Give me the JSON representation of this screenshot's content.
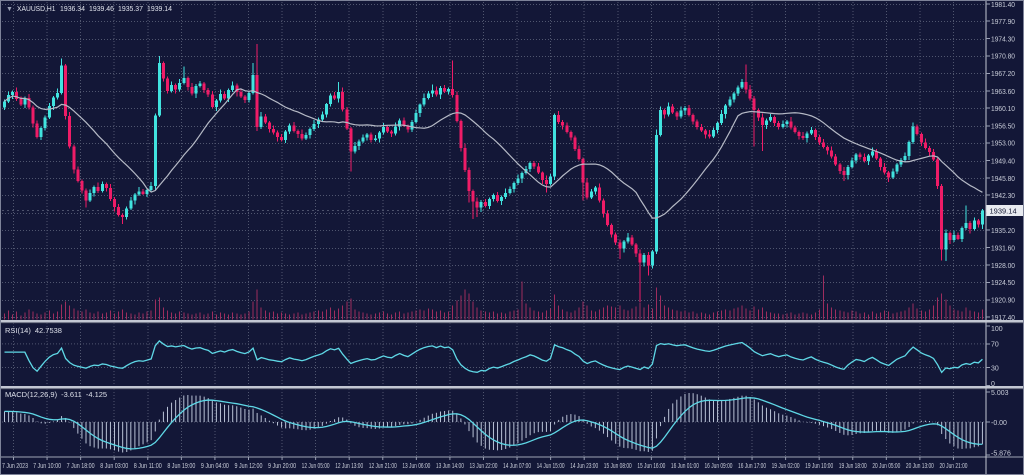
{
  "window": {
    "dropdown_icon": "▼",
    "symbol_period": "XAUUSD,H1",
    "open": "1936.34",
    "high": "1939.46",
    "low": "1935.37",
    "close": "1939.14"
  },
  "price_axis": {
    "labels": [
      "1981.40",
      "1977.90",
      "1974.30",
      "1970.80",
      "1967.20",
      "1963.60",
      "1960.10",
      "1956.50",
      "1953.00",
      "1949.40",
      "1945.80",
      "1942.30",
      "1938.70",
      "1935.20",
      "1931.60",
      "1928.00",
      "1924.50",
      "1920.90",
      "1917.40"
    ],
    "current_price": "1939.14"
  },
  "time_axis": {
    "labels": [
      "7 Jun 2023",
      "7 Jun 10:00",
      "7 Jun 18:00",
      "8 Jun 03:00",
      "8 Jun 11:00",
      "8 Jun 19:00",
      "9 Jun 04:00",
      "9 Jun 12:00",
      "9 Jun 20:00",
      "12 Jun 05:00",
      "12 Jun 13:00",
      "12 Jun 21:00",
      "13 Jun 06:00",
      "13 Jun 14:00",
      "13 Jun 22:00",
      "14 Jun 07:00",
      "14 Jun 15:00",
      "14 Jun 23:00",
      "15 Jun 08:00",
      "15 Jun 16:00",
      "16 Jun 01:00",
      "16 Jun 09:00",
      "16 Jun 17:00",
      "19 Jun 02:00",
      "19 Jun 10:00",
      "19 Jun 18:00",
      "20 Jun 05:00",
      "20 Jun 13:00",
      "20 Jun 21:00"
    ]
  },
  "indicators": {
    "rsi": {
      "label": "RSI(14)",
      "value": "42.7538",
      "period": 14,
      "scale_labels": [
        "100",
        "70",
        "30",
        "0"
      ],
      "level_lines": [
        70,
        30
      ]
    },
    "macd": {
      "label": "MACD(12,26,9)",
      "value": "-3.611",
      "signal_value": "-4.125",
      "fast": 12,
      "slow": 26,
      "signal": 9,
      "scale_labels": [
        "5.003",
        "-0.00",
        "-5.876"
      ],
      "initial_trend_offset": 1.8
    }
  },
  "ma": {
    "period": 21
  },
  "colors": {
    "bg": "#131737",
    "grid": "#50566f",
    "bull": "#41e3df",
    "bear": "#ef1c67",
    "ma_line": "#b6bac6",
    "volume": "#9e2d5e",
    "rsi_line": "#5fd8e6",
    "macd_hist": "#b9c2d6",
    "macd_signal": "#5fd8e6",
    "axis_text": "#c9cdd9",
    "separator": "#c3c7d3",
    "price_box_bg": "#e8eaf0",
    "price_box_text": "#10142f",
    "bid_line": "#7c8197",
    "border": "#7e8399"
  },
  "chart_data": {
    "type": "candlestick",
    "symbol": "XAUUSD",
    "timeframe": "H1",
    "first_open": 1960.2,
    "open_rule": "previous_close",
    "closes": [
      1961.5,
      1962.8,
      1963.4,
      1962.0,
      1960.8,
      1962.2,
      1960.2,
      1957.0,
      1954.2,
      1956.0,
      1958.2,
      1960.5,
      1962.3,
      1963.2,
      1968.8,
      1958.5,
      1952.3,
      1947.6,
      1945.2,
      1943.3,
      1941.2,
      1942.8,
      1944.0,
      1943.2,
      1944.6,
      1943.8,
      1941.5,
      1939.9,
      1938.3,
      1937.8,
      1939.6,
      1941.2,
      1942.5,
      1943.1,
      1942.6,
      1943.4,
      1944.2,
      1958.6,
      1969.3,
      1966.2,
      1963.6,
      1964.8,
      1963.9,
      1965.2,
      1966.3,
      1964.4,
      1963.1,
      1964.6,
      1965.1,
      1963.8,
      1962.9,
      1960.3,
      1961.7,
      1963.0,
      1962.1,
      1963.8,
      1964.7,
      1963.4,
      1962.5,
      1961.8,
      1963.2,
      1966.9,
      1956.2,
      1958.4,
      1957.2,
      1955.8,
      1955.1,
      1954.2,
      1953.6,
      1955.3,
      1956.6,
      1955.4,
      1954.8,
      1953.9,
      1954.6,
      1955.8,
      1956.9,
      1957.8,
      1958.8,
      1960.9,
      1962.7,
      1962.1,
      1963.4,
      1959.8,
      1955.9,
      1951.2,
      1952.4,
      1953.3,
      1954.1,
      1954.7,
      1953.6,
      1953.9,
      1955.1,
      1956.2,
      1955.3,
      1954.9,
      1956.4,
      1957.6,
      1956.5,
      1955.7,
      1957.3,
      1959.1,
      1960.8,
      1962.2,
      1963.1,
      1963.7,
      1962.9,
      1964.2,
      1963.5,
      1964.0,
      1962.8,
      1957.5,
      1952.0,
      1947.5,
      1943.2,
      1941.0,
      1939.8,
      1940.9,
      1940.1,
      1941.5,
      1942.3,
      1941.1,
      1941.9,
      1942.8,
      1943.6,
      1944.8,
      1945.7,
      1946.8,
      1947.7,
      1948.9,
      1948.2,
      1946.9,
      1945.4,
      1944.6,
      1946.1,
      1958.7,
      1957.3,
      1956.6,
      1955.2,
      1954.1,
      1951.8,
      1949.7,
      1944.9,
      1941.8,
      1943.1,
      1943.9,
      1941.2,
      1938.6,
      1936.2,
      1934.3,
      1932.6,
      1931.4,
      1932.8,
      1933.7,
      1932.2,
      1930.4,
      1928.6,
      1930.1,
      1927.9,
      1930.8,
      1954.6,
      1959.7,
      1958.8,
      1960.4,
      1959.2,
      1958.4,
      1959.6,
      1960.1,
      1958.7,
      1957.4,
      1956.2,
      1955.5,
      1954.7,
      1954.3,
      1955.6,
      1957.1,
      1958.9,
      1960.6,
      1961.9,
      1963.1,
      1964.3,
      1965.4,
      1963.9,
      1962.1,
      1959.7,
      1958.2,
      1956.7,
      1957.6,
      1958.3,
      1957.1,
      1956.2,
      1956.9,
      1957.4,
      1956.1,
      1955.2,
      1954.4,
      1954.0,
      1954.9,
      1955.6,
      1954.2,
      1953.1,
      1952.2,
      1951.4,
      1950.2,
      1948.6,
      1947.3,
      1946.4,
      1948.1,
      1949.4,
      1950.6,
      1950.1,
      1949.3,
      1950.4,
      1951.2,
      1949.8,
      1948.1,
      1946.9,
      1945.9,
      1947.2,
      1948.6,
      1949.5,
      1950.3,
      1953.2,
      1956.3,
      1954.8,
      1953.1,
      1952.0,
      1951.1,
      1949.6,
      1944.2,
      1931.2,
      1934.6,
      1933.1,
      1934.2,
      1933.4,
      1935.6,
      1936.6,
      1935.4,
      1937.1,
      1936.3,
      1939.14
    ],
    "wick_up_default": [
      0.4,
      0.7,
      0.3,
      0.9,
      0.5,
      0.3,
      0.8,
      0.4,
      0.6,
      0.3
    ],
    "wick_dn_default": [
      0.5,
      0.3,
      0.8,
      0.4,
      0.3,
      0.7,
      0.4,
      0.9,
      0.3,
      0.6
    ],
    "wick_up_overrides": {
      "14": 1.4,
      "38": 1.5,
      "44": 2.3,
      "61": 2.4,
      "62": 6.3,
      "82": 2.0,
      "105": 1.2,
      "110": 5.8,
      "160": 1.1,
      "182": 3.6,
      "223": 0.9,
      "236": 3.6
    },
    "wick_dn_overrides": {
      "20": 1.4,
      "29": 1.4,
      "85": 4.0,
      "114": 2.4,
      "115": 3.6,
      "116": 2.0,
      "133": 1.7,
      "142": 3.7,
      "151": 2.1,
      "156": 8.1,
      "158": 2.0,
      "184": 7.4,
      "186": 5.4,
      "206": 1.2,
      "230": 2.2,
      "231": 2.3
    },
    "last_candle": {
      "open": 1936.34,
      "high": 1939.46,
      "low": 1935.37,
      "close": 1939.14
    },
    "volumes": [
      6,
      9,
      5,
      8,
      4,
      7,
      10,
      8,
      6,
      5,
      7,
      9,
      6,
      8,
      15,
      18,
      14,
      11,
      9,
      8,
      10,
      7,
      6,
      8,
      6,
      7,
      9,
      6,
      8,
      10,
      7,
      6,
      5,
      7,
      6,
      8,
      9,
      20,
      22,
      12,
      9,
      7,
      6,
      8,
      7,
      6,
      5,
      6,
      7,
      5,
      6,
      8,
      5,
      7,
      6,
      5,
      7,
      6,
      5,
      6,
      8,
      18,
      30,
      12,
      9,
      7,
      8,
      6,
      7,
      6,
      5,
      6,
      7,
      5,
      6,
      7,
      8,
      9,
      8,
      10,
      12,
      9,
      11,
      14,
      18,
      21,
      10,
      8,
      7,
      6,
      5,
      6,
      7,
      8,
      6,
      5,
      7,
      8,
      6,
      7,
      8,
      9,
      10,
      9,
      11,
      10,
      8,
      9,
      7,
      8,
      14,
      19,
      24,
      30,
      26,
      18,
      12,
      9,
      8,
      7,
      8,
      6,
      7,
      6,
      8,
      9,
      10,
      38,
      16,
      12,
      9,
      8,
      7,
      9,
      11,
      25,
      14,
      10,
      8,
      7,
      9,
      12,
      18,
      14,
      9,
      8,
      10,
      12,
      14,
      13,
      12,
      14,
      10,
      9,
      11,
      13,
      17,
      12,
      15,
      11,
      32,
      24,
      14,
      12,
      10,
      9,
      8,
      9,
      7,
      8,
      6,
      7,
      6,
      5,
      7,
      8,
      9,
      10,
      9,
      11,
      12,
      14,
      11,
      9,
      13,
      10,
      12,
      8,
      7,
      6,
      6,
      5,
      6,
      7,
      5,
      6,
      7,
      6,
      5,
      7,
      10,
      44,
      16,
      12,
      10,
      9,
      8,
      7,
      9,
      8,
      6,
      7,
      5,
      8,
      6,
      7,
      9,
      8,
      6,
      7,
      8,
      9,
      12,
      16,
      11,
      9,
      8,
      10,
      14,
      22,
      26,
      20,
      14,
      10,
      9,
      8,
      12,
      9,
      8,
      7,
      10
    ],
    "ylim": [
      1916.0,
      1981.8
    ]
  }
}
